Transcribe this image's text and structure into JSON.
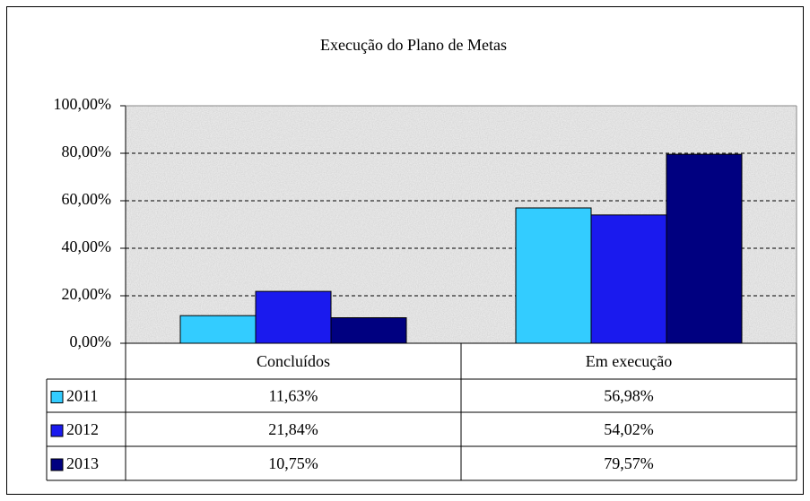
{
  "chart_data": {
    "type": "bar",
    "title": "Execução do Plano de Metas",
    "categories": [
      "Concluídos",
      "Em execução"
    ],
    "series": [
      {
        "name": "2011",
        "color": "#33ccff",
        "values": [
          11.63,
          56.98
        ],
        "value_labels": [
          "11,63%",
          "56,98%"
        ]
      },
      {
        "name": "2012",
        "color": "#1a1aee",
        "values": [
          21.84,
          54.02
        ],
        "value_labels": [
          "21,84%",
          "54,02%"
        ]
      },
      {
        "name": "2013",
        "color": "#000080",
        "values": [
          10.75,
          79.57
        ],
        "value_labels": [
          "10,75%",
          "79,57%"
        ]
      }
    ],
    "ylim": [
      0,
      100
    ],
    "yticks": [
      {
        "value": 0,
        "label": "0,00%"
      },
      {
        "value": 20,
        "label": "20,00%"
      },
      {
        "value": 40,
        "label": "40,00%"
      },
      {
        "value": 60,
        "label": "60,00%"
      },
      {
        "value": 80,
        "label": "80,00%"
      },
      {
        "value": 100,
        "label": "100,00%"
      }
    ],
    "grid": true
  }
}
